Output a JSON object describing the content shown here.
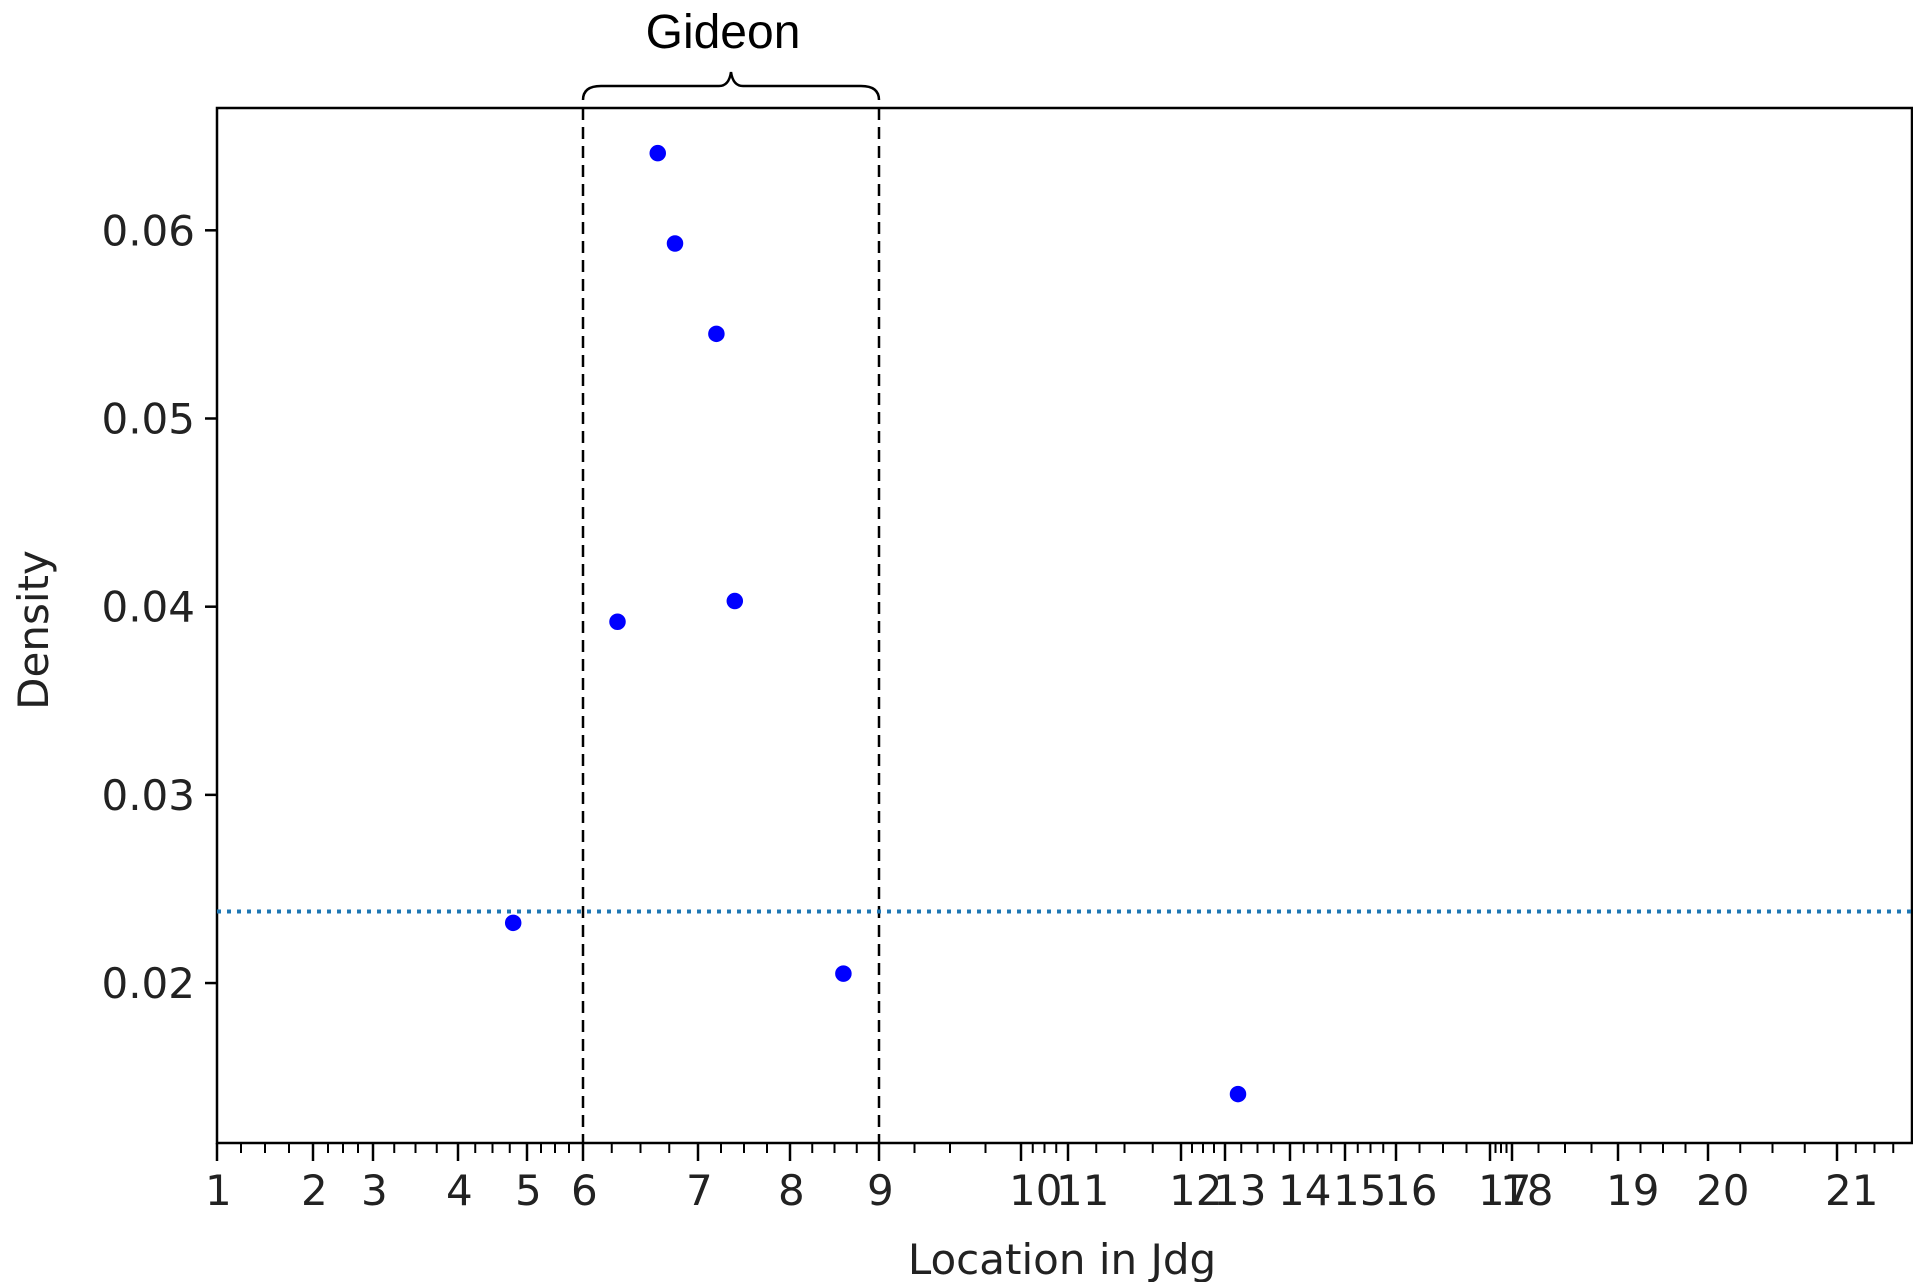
{
  "chart_data": {
    "type": "scatter",
    "xlabel": "Location in Jdg",
    "ylabel": "Density",
    "ylim": [
      0.0115,
      0.0665
    ],
    "grid": false,
    "legend": "none",
    "x_tick_labels": [
      {
        "label": "1",
        "chapter": 1
      },
      {
        "label": "2",
        "chapter": 2
      },
      {
        "label": "3",
        "chapter": 3
      },
      {
        "label": "4",
        "chapter": 4
      },
      {
        "label": "5",
        "chapter": 5
      },
      {
        "label": "6",
        "chapter": 6
      },
      {
        "label": "7",
        "chapter": 7
      },
      {
        "label": "8",
        "chapter": 8
      },
      {
        "label": "9",
        "chapter": 9
      },
      {
        "label": "10",
        "chapter": 10
      },
      {
        "label": "11",
        "chapter": 11
      },
      {
        "label": "12",
        "chapter": 12
      },
      {
        "label": "13",
        "chapter": 13
      },
      {
        "label": "14",
        "chapter": 14
      },
      {
        "label": "15",
        "chapter": 15
      },
      {
        "label": "16",
        "chapter": 16
      },
      {
        "label": "17",
        "chapter": 17
      },
      {
        "label": "18",
        "chapter": 18
      },
      {
        "label": "19",
        "chapter": 19
      },
      {
        "label": "20",
        "chapter": 20
      },
      {
        "label": "21",
        "chapter": 21
      }
    ],
    "y_ticks": [
      0.02,
      0.03,
      0.04,
      0.05,
      0.06
    ],
    "y_tick_labels": [
      "0.02",
      "0.03",
      "0.04",
      "0.05",
      "0.06"
    ],
    "points": [
      {
        "x": 4.8,
        "y": 0.0232
      },
      {
        "x": 6.3,
        "y": 0.0392
      },
      {
        "x": 6.65,
        "y": 0.0641
      },
      {
        "x": 6.8,
        "y": 0.0593
      },
      {
        "x": 7.2,
        "y": 0.0545
      },
      {
        "x": 7.4,
        "y": 0.0403
      },
      {
        "x": 8.6,
        "y": 0.0205
      },
      {
        "x": 13.2,
        "y": 0.0141
      }
    ],
    "point_color": "#0000ff",
    "reference_line": {
      "y": 0.0238,
      "style": "dotted",
      "color": "#1f77b4"
    },
    "region": {
      "from_chapter": 6,
      "to_chapter": 9,
      "label": "Gideon",
      "style": "dashed",
      "color": "#000000"
    }
  }
}
